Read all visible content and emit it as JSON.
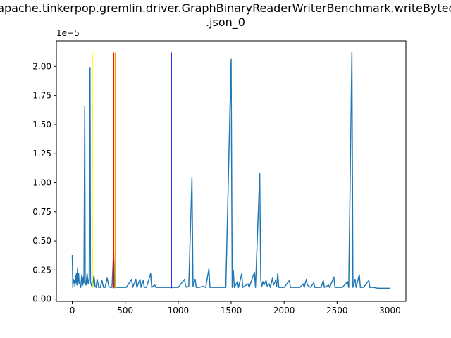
{
  "chart_data": {
    "type": "line",
    "title_line1": "org.apache.tinkerpop.gremlin.driver.GraphBinaryReaderWriterBenchmark.writeBytecode",
    "title_line2": ".json_0",
    "offset_label": "1e−5",
    "xlabel": "",
    "ylabel": "",
    "xlim": [
      -150,
      3150
    ],
    "ylim": [
      -0.02,
      2.22
    ],
    "x_ticks": [
      0,
      500,
      1000,
      1500,
      2000,
      2500,
      3000
    ],
    "y_ticks": [
      0.0,
      0.25,
      0.5,
      0.75,
      1.0,
      1.25,
      1.5,
      1.75,
      2.0
    ],
    "y_tick_labels": [
      "0.00",
      "0.25",
      "0.50",
      "0.75",
      "1.00",
      "1.25",
      "1.50",
      "1.75",
      "2.00"
    ],
    "baseline": 0.093,
    "series": [
      {
        "color": "#1f77b4",
        "points": [
          [
            0,
            0.38
          ],
          [
            5,
            0.1
          ],
          [
            10,
            0.17
          ],
          [
            15,
            0.14
          ],
          [
            20,
            0.16
          ],
          [
            25,
            0.11
          ],
          [
            30,
            0.2
          ],
          [
            35,
            0.14
          ],
          [
            40,
            0.22
          ],
          [
            45,
            0.12
          ],
          [
            50,
            0.27
          ],
          [
            55,
            0.15
          ],
          [
            60,
            0.22
          ],
          [
            65,
            0.13
          ],
          [
            70,
            0.14
          ],
          [
            80,
            0.1
          ],
          [
            90,
            0.21
          ],
          [
            100,
            0.12
          ],
          [
            105,
            0.19
          ],
          [
            110,
            0.14
          ],
          [
            118,
            1.66
          ],
          [
            122,
            0.15
          ],
          [
            130,
            0.12
          ],
          [
            140,
            0.22
          ],
          [
            150,
            0.13
          ],
          [
            160,
            0.18
          ],
          [
            168,
            1.99
          ],
          [
            172,
            0.15
          ],
          [
            180,
            0.12
          ],
          [
            190,
            0.1
          ],
          [
            205,
            0.2
          ],
          [
            215,
            0.11
          ],
          [
            225,
            0.1
          ],
          [
            235,
            0.17
          ],
          [
            250,
            0.1
          ],
          [
            265,
            0.1
          ],
          [
            280,
            0.16
          ],
          [
            295,
            0.1
          ],
          [
            310,
            0.1
          ],
          [
            330,
            0.18
          ],
          [
            345,
            0.11
          ],
          [
            360,
            0.1
          ],
          [
            375,
            0.1
          ],
          [
            390,
            0.4
          ],
          [
            400,
            0.1
          ],
          [
            420,
            0.1
          ],
          [
            450,
            0.1
          ],
          [
            480,
            0.1
          ],
          [
            500,
            0.1
          ],
          [
            510,
            0.1
          ],
          [
            560,
            0.17
          ],
          [
            570,
            0.1
          ],
          [
            600,
            0.17
          ],
          [
            610,
            0.1
          ],
          [
            640,
            0.17
          ],
          [
            650,
            0.1
          ],
          [
            670,
            0.16
          ],
          [
            680,
            0.1
          ],
          [
            700,
            0.1
          ],
          [
            740,
            0.22
          ],
          [
            750,
            0.1
          ],
          [
            760,
            0.11
          ],
          [
            780,
            0.12
          ],
          [
            790,
            0.1
          ],
          [
            800,
            0.1
          ],
          [
            840,
            0.1
          ],
          [
            880,
            0.1
          ],
          [
            920,
            0.1
          ],
          [
            960,
            0.1
          ],
          [
            1000,
            0.1
          ],
          [
            1060,
            0.17
          ],
          [
            1070,
            0.11
          ],
          [
            1080,
            0.1
          ],
          [
            1100,
            0.11
          ],
          [
            1130,
            1.04
          ],
          [
            1140,
            0.11
          ],
          [
            1160,
            0.17
          ],
          [
            1170,
            0.1
          ],
          [
            1200,
            0.1
          ],
          [
            1230,
            0.11
          ],
          [
            1260,
            0.1
          ],
          [
            1290,
            0.26
          ],
          [
            1300,
            0.1
          ],
          [
            1350,
            0.1
          ],
          [
            1400,
            0.1
          ],
          [
            1450,
            0.1
          ],
          [
            1500,
            2.06
          ],
          [
            1510,
            0.1
          ],
          [
            1520,
            0.25
          ],
          [
            1530,
            0.1
          ],
          [
            1560,
            0.15
          ],
          [
            1570,
            0.1
          ],
          [
            1600,
            0.22
          ],
          [
            1610,
            0.1
          ],
          [
            1660,
            0.13
          ],
          [
            1670,
            0.1
          ],
          [
            1720,
            0.23
          ],
          [
            1730,
            0.1
          ],
          [
            1770,
            1.08
          ],
          [
            1780,
            0.16
          ],
          [
            1790,
            0.11
          ],
          [
            1800,
            0.15
          ],
          [
            1810,
            0.12
          ],
          [
            1830,
            0.16
          ],
          [
            1840,
            0.11
          ],
          [
            1860,
            0.13
          ],
          [
            1870,
            0.1
          ],
          [
            1890,
            0.18
          ],
          [
            1900,
            0.12
          ],
          [
            1920,
            0.16
          ],
          [
            1930,
            0.11
          ],
          [
            1940,
            0.22
          ],
          [
            1950,
            0.1
          ],
          [
            2000,
            0.1
          ],
          [
            2050,
            0.16
          ],
          [
            2060,
            0.1
          ],
          [
            2100,
            0.1
          ],
          [
            2150,
            0.1
          ],
          [
            2180,
            0.13
          ],
          [
            2190,
            0.1
          ],
          [
            2210,
            0.17
          ],
          [
            2220,
            0.12
          ],
          [
            2250,
            0.1
          ],
          [
            2280,
            0.14
          ],
          [
            2290,
            0.1
          ],
          [
            2350,
            0.1
          ],
          [
            2370,
            0.16
          ],
          [
            2380,
            0.1
          ],
          [
            2420,
            0.12
          ],
          [
            2430,
            0.1
          ],
          [
            2470,
            0.19
          ],
          [
            2480,
            0.1
          ],
          [
            2550,
            0.1
          ],
          [
            2600,
            0.15
          ],
          [
            2610,
            0.1
          ],
          [
            2640,
            2.12
          ],
          [
            2650,
            0.1
          ],
          [
            2670,
            0.17
          ],
          [
            2680,
            0.1
          ],
          [
            2710,
            0.21
          ],
          [
            2720,
            0.1
          ],
          [
            2750,
            0.1
          ],
          [
            2800,
            0.16
          ],
          [
            2810,
            0.1
          ],
          [
            2850,
            0.1
          ],
          [
            2870,
            0.095
          ],
          [
            2900,
            0.093
          ],
          [
            2950,
            0.093
          ],
          [
            3000,
            0.093
          ]
        ]
      }
    ],
    "vertical_lines": [
      {
        "x": 190,
        "color": "#ffff00"
      },
      {
        "x": 390,
        "color": "#ff0000"
      },
      {
        "x": 405,
        "color": "#ffa500"
      },
      {
        "x": 935,
        "color": "#0000ff"
      }
    ],
    "vline_ymin": 0.093,
    "vline_ymax": 2.12
  }
}
